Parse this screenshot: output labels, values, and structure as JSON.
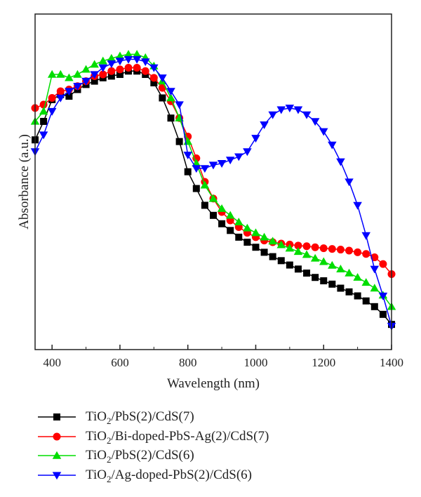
{
  "chart_data": {
    "type": "line",
    "xlabel": "Wavelength (nm)",
    "ylabel": "Absorbance (a.u.)",
    "xlim": [
      350,
      1400
    ],
    "ylim": [
      0,
      1
    ],
    "xticks": [
      "400",
      "600",
      "800",
      "1000",
      "1200",
      "1400"
    ],
    "grid": false,
    "legend_position": "below",
    "x": [
      350,
      375,
      400,
      425,
      450,
      475,
      500,
      525,
      550,
      575,
      600,
      625,
      650,
      675,
      700,
      725,
      750,
      775,
      800,
      825,
      850,
      875,
      900,
      925,
      950,
      975,
      1000,
      1025,
      1050,
      1075,
      1100,
      1125,
      1150,
      1175,
      1200,
      1225,
      1250,
      1275,
      1300,
      1325,
      1350,
      1375,
      1400
    ],
    "series": [
      {
        "name": "TiO2/PbS(2)/CdS(7)",
        "color": "#000000",
        "marker": "square",
        "values": [
          0.625,
          0.68,
          0.745,
          0.76,
          0.755,
          0.775,
          0.79,
          0.8,
          0.81,
          0.815,
          0.82,
          0.83,
          0.83,
          0.82,
          0.795,
          0.75,
          0.69,
          0.62,
          0.53,
          0.48,
          0.43,
          0.4,
          0.375,
          0.355,
          0.335,
          0.32,
          0.305,
          0.29,
          0.277,
          0.265,
          0.252,
          0.24,
          0.228,
          0.215,
          0.205,
          0.195,
          0.183,
          0.172,
          0.16,
          0.145,
          0.128,
          0.105,
          0.075
        ]
      },
      {
        "name": "TiO2/Bi-doped-PbS-Ag(2)/CdS(7)",
        "color": "#ff0000",
        "marker": "circle",
        "values": [
          0.72,
          0.73,
          0.75,
          0.77,
          0.775,
          0.785,
          0.8,
          0.815,
          0.82,
          0.83,
          0.835,
          0.84,
          0.84,
          0.83,
          0.81,
          0.78,
          0.74,
          0.69,
          0.635,
          0.57,
          0.5,
          0.45,
          0.41,
          0.385,
          0.365,
          0.348,
          0.335,
          0.325,
          0.32,
          0.316,
          0.313,
          0.31,
          0.308,
          0.305,
          0.302,
          0.3,
          0.298,
          0.295,
          0.29,
          0.285,
          0.275,
          0.255,
          0.225
        ]
      },
      {
        "name": "TiO2/PbS(2)/CdS(6)",
        "color": "#00dd00",
        "marker": "triangle-up",
        "values": [
          0.68,
          0.71,
          0.82,
          0.82,
          0.81,
          0.82,
          0.835,
          0.85,
          0.86,
          0.868,
          0.875,
          0.88,
          0.88,
          0.87,
          0.845,
          0.8,
          0.75,
          0.69,
          0.62,
          0.555,
          0.49,
          0.45,
          0.42,
          0.4,
          0.38,
          0.362,
          0.348,
          0.335,
          0.323,
          0.312,
          0.302,
          0.292,
          0.283,
          0.272,
          0.262,
          0.251,
          0.24,
          0.228,
          0.215,
          0.2,
          0.183,
          0.162,
          0.128
        ]
      },
      {
        "name": "TiO2/Ag-doped-PbS(2)/CdS(6)",
        "color": "#0000ff",
        "marker": "triangle-down",
        "values": [
          0.59,
          0.64,
          0.71,
          0.75,
          0.77,
          0.785,
          0.8,
          0.82,
          0.84,
          0.852,
          0.86,
          0.865,
          0.865,
          0.858,
          0.84,
          0.81,
          0.77,
          0.73,
          0.58,
          0.54,
          0.54,
          0.55,
          0.555,
          0.565,
          0.575,
          0.59,
          0.63,
          0.67,
          0.7,
          0.715,
          0.72,
          0.715,
          0.7,
          0.68,
          0.65,
          0.61,
          0.56,
          0.5,
          0.43,
          0.34,
          0.24,
          0.16,
          0.07
        ]
      }
    ]
  },
  "legend": [
    {
      "name": "TiO2/PbS(2)/CdS(7)",
      "pre": "TiO",
      "sub": "2",
      "post": "/PbS(2)/CdS(7)"
    },
    {
      "name": "TiO2/Bi-doped-PbS-Ag(2)/CdS(7)",
      "pre": "TiO",
      "sub": "2",
      "post": "/Bi-doped-PbS-Ag(2)/CdS(7)"
    },
    {
      "name": "TiO2/PbS(2)/CdS(6)",
      "pre": "TiO",
      "sub": "2",
      "post": "/PbS(2)/CdS(6)"
    },
    {
      "name": "TiO2/Ag-doped-PbS(2)/CdS(6)",
      "pre": "TiO",
      "sub": "2",
      "post": "/Ag-doped-PbS(2)/CdS(6)"
    }
  ]
}
